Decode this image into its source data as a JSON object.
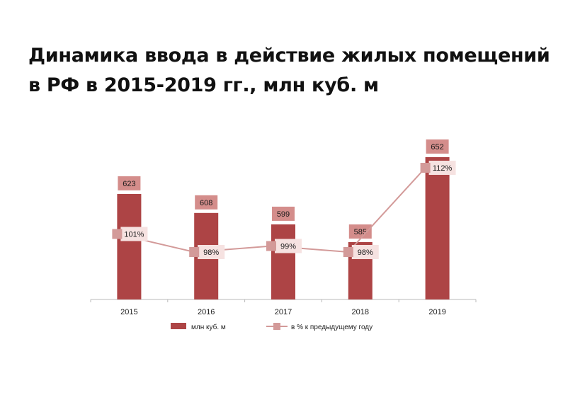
{
  "title_line1": "Динамика ввода в действие жилых помещений",
  "title_line2": "в РФ в 2015-2019 гг., млн куб. м",
  "colors": {
    "bar": "#ad4445",
    "bar_label_bg": "#d48d8b",
    "line": "#d39a99",
    "line_label_bg": "#f6e2e1"
  },
  "chart_data": {
    "type": "bar",
    "categories": [
      "2015",
      "2016",
      "2017",
      "2018",
      "2019"
    ],
    "series": [
      {
        "name": "млн куб. м",
        "type": "bar",
        "values": [
          623,
          608,
          599,
          585,
          652
        ],
        "labels": [
          "623",
          "608",
          "599",
          "585",
          "652"
        ]
      },
      {
        "name": "в % к предыдущему году",
        "type": "line",
        "values": [
          101,
          98,
          99,
          98,
          112
        ],
        "labels": [
          "101%",
          "98%",
          "99%",
          "98%",
          "112%"
        ]
      }
    ],
    "legend_position": "bottom",
    "grid": false
  }
}
